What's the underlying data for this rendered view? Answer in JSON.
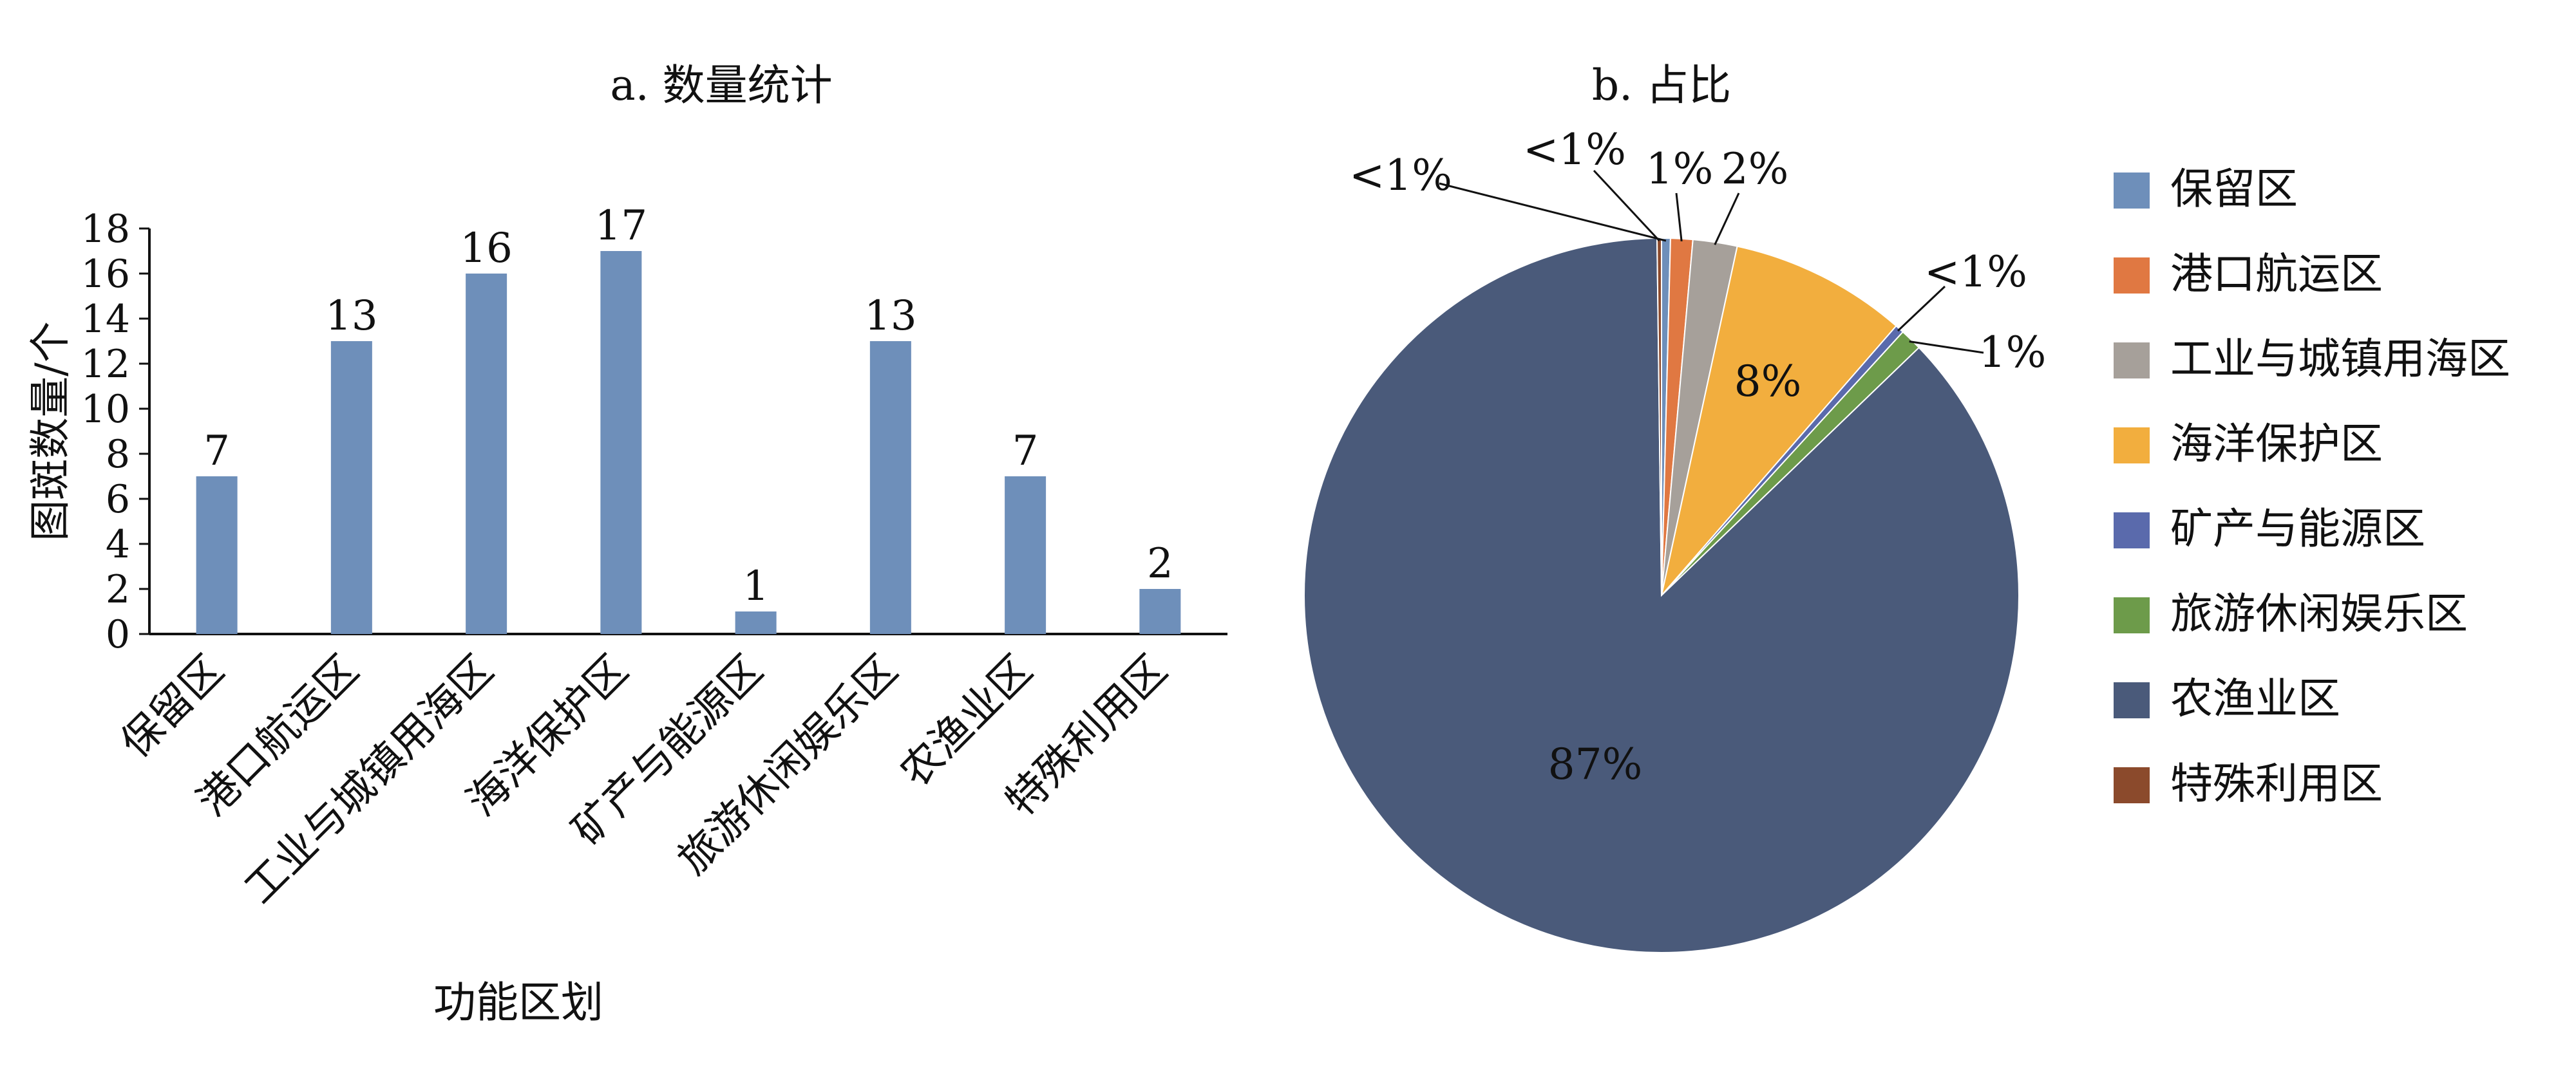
{
  "chart_data": [
    {
      "type": "bar",
      "title": "a. 数量统计",
      "xlabel": "功能区划",
      "ylabel": "图斑数量/个",
      "ylim": [
        0,
        18
      ],
      "yticks": [
        0,
        2,
        4,
        6,
        8,
        10,
        12,
        14,
        16,
        18
      ],
      "grid": false,
      "categories": [
        "保留区",
        "港口航运区",
        "工业与城镇用海区",
        "海洋保护区",
        "矿产与能源区",
        "旅游休闲娱乐区",
        "农渔业区",
        "特殊利用区"
      ],
      "values": [
        7,
        13,
        16,
        17,
        1,
        13,
        7,
        2
      ],
      "data_labels": [
        "7",
        "13",
        "16",
        "17",
        "1",
        "13",
        "7",
        "2"
      ],
      "color": "#6e8fba"
    },
    {
      "type": "pie",
      "title": "b. 占比",
      "legend_position": "right",
      "categories": [
        "保留区",
        "港口航运区",
        "工业与城镇用海区",
        "海洋保护区",
        "矿产与能源区",
        "旅游休闲娱乐区",
        "农渔业区",
        "特殊利用区"
      ],
      "values": [
        0.4,
        1,
        2,
        8,
        0.4,
        1,
        87,
        0.2
      ],
      "data_labels": [
        "<1%",
        "1%",
        "2%",
        "8%",
        "<1%",
        "1%",
        "87%",
        "<1%"
      ],
      "colors": [
        "#6e8fba",
        "#e07842",
        "#a6a09a",
        "#f2ae3e",
        "#5a6aac",
        "#6d9b4a",
        "#4a5a7a",
        "#8b4a2c"
      ]
    }
  ]
}
